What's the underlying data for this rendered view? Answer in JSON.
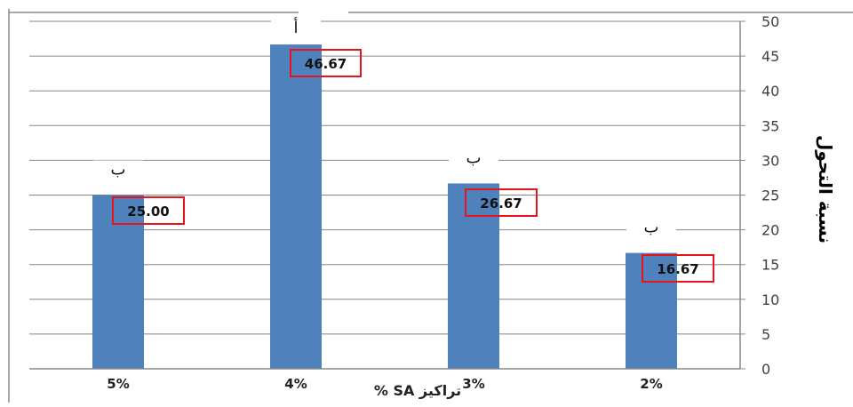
{
  "chart_data": {
    "type": "bar",
    "categories": [
      "5%",
      "4%",
      "3%",
      "2%"
    ],
    "values": [
      25.0,
      46.67,
      26.67,
      16.67
    ],
    "value_labels": [
      "25.00",
      "46.67",
      "26.67",
      "16.67"
    ],
    "significance_letters": [
      "ب",
      "أ",
      "ب",
      "ب"
    ],
    "ylabel": "نسبة التحول",
    "xlabel": "تراكيز SA %",
    "ylim": [
      0,
      50
    ],
    "yticks": [
      0,
      5,
      10,
      15,
      20,
      25,
      30,
      35,
      40,
      45,
      50
    ],
    "y_axis_side": "right",
    "grid": true,
    "legend": false,
    "colors": {
      "bar": "#4F81BD",
      "label_box": "#E8141B",
      "grid": "#878787",
      "axis": "#878787"
    }
  }
}
